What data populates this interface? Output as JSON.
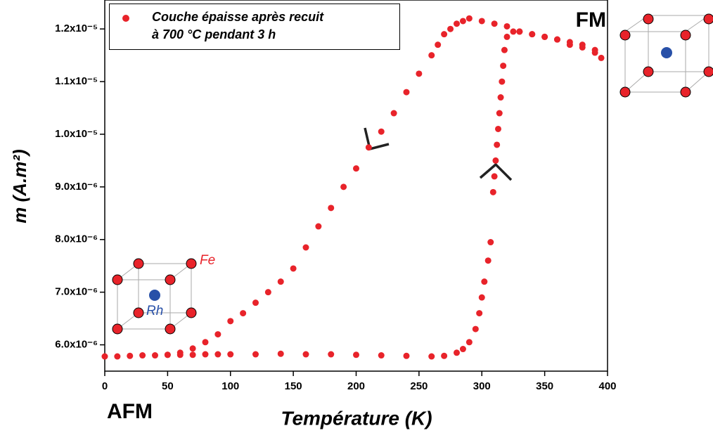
{
  "chart_data": {
    "type": "scatter",
    "x_label": "Température (K)",
    "y_label": "m (A.m²)",
    "annotations": [
      "FM",
      "AFM",
      "Fe",
      "Rh"
    ],
    "xlim": [
      0,
      400
    ],
    "xticks": [
      0,
      50,
      100,
      150,
      200,
      250,
      300,
      350,
      400
    ],
    "ylim": [
      5.5e-06,
      1.255e-05
    ],
    "yticks": [
      {
        "value": 6e-06,
        "label": "6.0x10⁻⁶"
      },
      {
        "value": 7e-06,
        "label": "7.0x10⁻⁶"
      },
      {
        "value": 8e-06,
        "label": "8.0x10⁻⁶"
      },
      {
        "value": 9e-06,
        "label": "9.0x10⁻⁶"
      },
      {
        "value": 1e-05,
        "label": "1.0x10⁻⁵"
      },
      {
        "value": 1.1e-05,
        "label": "1.1x10⁻⁵"
      },
      {
        "value": 1.2e-05,
        "label": "1.2x10⁻⁵"
      }
    ],
    "series": [
      {
        "name": "Couche épaisse après recuit à 700 °C pendant 3 h",
        "color": "#e8232a",
        "x": [
          0,
          10,
          20,
          30,
          40,
          50,
          60,
          70,
          80,
          90,
          100,
          120,
          140,
          160,
          180,
          200,
          220,
          240,
          260,
          270,
          280,
          285,
          290,
          295,
          298,
          300,
          302,
          305,
          307,
          309,
          310,
          311,
          312,
          313,
          314,
          315,
          316,
          317,
          318,
          320,
          325,
          330,
          340,
          350,
          360,
          370,
          380,
          390,
          395,
          390,
          380,
          370,
          360,
          350,
          340,
          330,
          320,
          310,
          300,
          290,
          285,
          280,
          275,
          270,
          265,
          260,
          250,
          240,
          230,
          220,
          210,
          200,
          190,
          180,
          170,
          160,
          150,
          140,
          130,
          120,
          110,
          100,
          90,
          80,
          70,
          60,
          50
        ],
        "values": [
          5.78e-06,
          5.78e-06,
          5.79e-06,
          5.8e-06,
          5.8e-06,
          5.81e-06,
          5.81e-06,
          5.81e-06,
          5.82e-06,
          5.82e-06,
          5.82e-06,
          5.82e-06,
          5.83e-06,
          5.82e-06,
          5.82e-06,
          5.81e-06,
          5.8e-06,
          5.79e-06,
          5.78e-06,
          5.79e-06,
          5.85e-06,
          5.92e-06,
          6.05e-06,
          6.3e-06,
          6.6e-06,
          6.9e-06,
          7.2e-06,
          7.6e-06,
          7.95e-06,
          8.9e-06,
          9.2e-06,
          9.5e-06,
          9.8e-06,
          1.01e-05,
          1.04e-05,
          1.07e-05,
          1.1e-05,
          1.13e-05,
          1.16e-05,
          1.185e-05,
          1.195e-05,
          1.195e-05,
          1.19e-05,
          1.185e-05,
          1.18e-05,
          1.17e-05,
          1.165e-05,
          1.155e-05,
          1.145e-05,
          1.16e-05,
          1.17e-05,
          1.175e-05,
          1.18e-05,
          1.185e-05,
          1.19e-05,
          1.195e-05,
          1.205e-05,
          1.21e-05,
          1.215e-05,
          1.22e-05,
          1.215e-05,
          1.21e-05,
          1.2e-05,
          1.19e-05,
          1.17e-05,
          1.15e-05,
          1.115e-05,
          1.08e-05,
          1.04e-05,
          1.005e-05,
          9.75e-06,
          9.35e-06,
          9e-06,
          8.6e-06,
          8.25e-06,
          7.85e-06,
          7.45e-06,
          7.2e-06,
          7e-06,
          6.8e-06,
          6.6e-06,
          6.45e-06,
          6.2e-06,
          6.05e-06,
          5.93e-06,
          5.85e-06,
          5.81e-06
        ]
      }
    ]
  }
}
